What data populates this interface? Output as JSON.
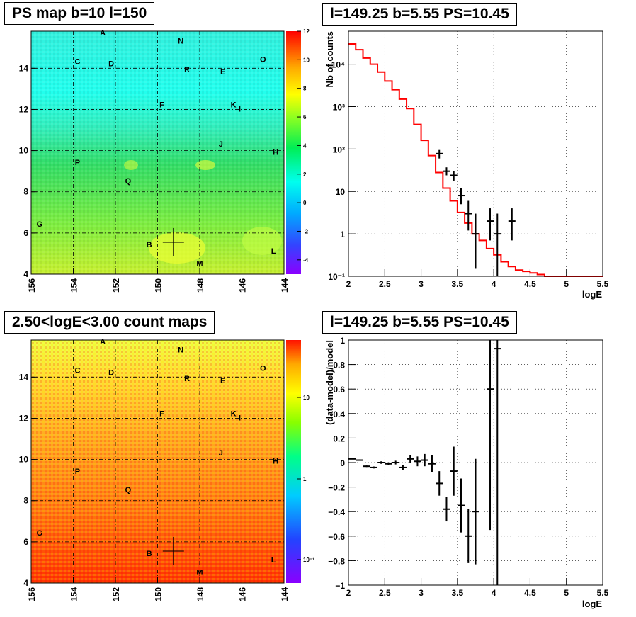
{
  "panels": {
    "ps_map_title": "PS map b=10 l=150",
    "spectrum_title": "l=149.25 b=5.55 PS=10.45",
    "count_map_title": "2.50<logE<3.00 count maps",
    "residual_title": "l=149.25 b=5.55 PS=10.45"
  },
  "map_axes": {
    "x_ticks": [
      "156",
      "154",
      "152",
      "150",
      "148",
      "146",
      "144"
    ],
    "y_ticks": [
      "4",
      "6",
      "8",
      "10",
      "12",
      "14"
    ]
  },
  "ps_colorbar_ticks": [
    "12",
    "10",
    "8",
    "6",
    "4",
    "2",
    "0",
    "-2",
    "-4"
  ],
  "count_colorbar_ticks": [
    "10",
    "1",
    "10⁻¹"
  ],
  "markers": [
    {
      "id": "A",
      "l": 152.6,
      "b": 15.6
    },
    {
      "id": "N",
      "l": 148.9,
      "b": 15.2
    },
    {
      "id": "C",
      "l": 153.8,
      "b": 14.2
    },
    {
      "id": "D",
      "l": 152.2,
      "b": 14.1
    },
    {
      "id": "R",
      "l": 148.6,
      "b": 13.8
    },
    {
      "id": "E",
      "l": 146.9,
      "b": 13.7
    },
    {
      "id": "O",
      "l": 145.0,
      "b": 14.3
    },
    {
      "id": "F",
      "l": 149.8,
      "b": 12.1
    },
    {
      "id": "K",
      "l": 146.4,
      "b": 12.1
    },
    {
      "id": "I",
      "l": 146.1,
      "b": 11.9
    },
    {
      "id": "J",
      "l": 147.0,
      "b": 10.2
    },
    {
      "id": "H",
      "l": 144.4,
      "b": 9.8
    },
    {
      "id": "P",
      "l": 153.8,
      "b": 9.3
    },
    {
      "id": "Q",
      "l": 151.4,
      "b": 8.4
    },
    {
      "id": "G",
      "l": 155.6,
      "b": 6.3
    },
    {
      "id": "B",
      "l": 150.4,
      "b": 5.3
    },
    {
      "id": "L",
      "l": 144.5,
      "b": 5.0
    },
    {
      "id": "M",
      "l": 148.0,
      "b": 4.4
    }
  ],
  "source_position": {
    "l": 149.25,
    "b": 5.55
  },
  "chart_data": [
    {
      "type": "heatmap",
      "title": "PS map b=10 l=150",
      "xlim": [
        156,
        144
      ],
      "ylim": [
        4,
        15.8
      ],
      "zlim": [
        -5,
        12
      ],
      "colorbar_ticks": [
        12,
        10,
        8,
        6,
        4,
        2,
        0,
        -2,
        -4
      ],
      "description_values": "cyan (~0-2) at high b, green-yellow (~4-7) at low b"
    },
    {
      "type": "line",
      "title": "l=149.25 b=5.55 PS=10.45",
      "xlabel": "logE",
      "ylabel": "Nb of counts",
      "xlim": [
        2,
        5.5
      ],
      "ylim": [
        0.1,
        60000
      ],
      "yscale": "log",
      "grid": true,
      "x_ticks": [
        "2",
        "2.5",
        "3",
        "3.5",
        "4",
        "4.5",
        "5",
        "5.5"
      ],
      "y_ticks": [
        "10⁻¹",
        "1",
        "10",
        "10²",
        "10³",
        "10⁴"
      ],
      "model_series": {
        "name": "model",
        "color": "#ff0000",
        "bin_edges": [
          2.0,
          2.1,
          2.2,
          2.3,
          2.4,
          2.5,
          2.6,
          2.7,
          2.8,
          2.9,
          3.0,
          3.1,
          3.2,
          3.3,
          3.4,
          3.5,
          3.6,
          3.7,
          3.8,
          3.9,
          4.0,
          4.1,
          4.2,
          4.3,
          4.4,
          4.5,
          4.6,
          4.7,
          4.8,
          4.9,
          5.0,
          5.1,
          5.2,
          5.3,
          5.4,
          5.5
        ],
        "values": [
          30000,
          22000,
          14000,
          10000,
          6500,
          4000,
          2500,
          1500,
          900,
          380,
          160,
          70,
          28,
          12,
          6,
          3.2,
          1.8,
          1.0,
          0.7,
          0.45,
          0.32,
          0.22,
          0.17,
          0.14,
          0.13,
          0.12,
          0.11,
          0.1,
          0.1,
          0.1,
          0.1,
          0.1,
          0.1,
          0.1,
          0.1
        ]
      },
      "data_series": {
        "name": "data",
        "color": "#000000",
        "points": [
          {
            "x": 3.25,
            "y": 78,
            "lo": 60,
            "hi": 95
          },
          {
            "x": 3.35,
            "y": 30,
            "lo": 24,
            "hi": 37
          },
          {
            "x": 3.45,
            "y": 24,
            "lo": 18,
            "hi": 30
          },
          {
            "x": 3.55,
            "y": 8,
            "lo": 5,
            "hi": 12
          },
          {
            "x": 3.65,
            "y": 3,
            "lo": 1.2,
            "hi": 6
          },
          {
            "x": 3.75,
            "y": 1,
            "lo": 0.15,
            "hi": 3
          },
          {
            "x": 3.95,
            "y": 2,
            "lo": 0.7,
            "hi": 4
          },
          {
            "x": 4.05,
            "y": 1,
            "lo": 0.1,
            "hi": 3
          },
          {
            "x": 4.25,
            "y": 2,
            "lo": 0.7,
            "hi": 4
          }
        ]
      }
    },
    {
      "type": "heatmap",
      "title": "2.50<logE<3.00 count maps",
      "xlim": [
        156,
        144
      ],
      "ylim": [
        4,
        15.8
      ],
      "zscale": "log",
      "colorbar_ticks": [
        "10",
        "1",
        "10⁻¹"
      ],
      "description_values": "yellow at high b, red-orange at low b"
    },
    {
      "type": "scatter",
      "title": "l=149.25 b=5.55 PS=10.45",
      "xlabel": "logE",
      "ylabel": "(data-model)/model",
      "xlim": [
        2,
        5.5
      ],
      "ylim": [
        -1,
        1
      ],
      "grid": true,
      "x_ticks": [
        "2",
        "2.5",
        "3",
        "3.5",
        "4",
        "4.5",
        "5",
        "5.5"
      ],
      "y_ticks": [
        "−1",
        "−0.8",
        "−0.6",
        "−0.4",
        "−0.2",
        "0",
        "0.2",
        "0.4",
        "0.6",
        "0.8",
        "1"
      ],
      "points": [
        {
          "x": 2.05,
          "y": 0.03,
          "err": 0.004
        },
        {
          "x": 2.15,
          "y": 0.02,
          "err": 0.005
        },
        {
          "x": 2.25,
          "y": -0.03,
          "err": 0.006
        },
        {
          "x": 2.35,
          "y": -0.04,
          "err": 0.008
        },
        {
          "x": 2.45,
          "y": 0.0,
          "err": 0.01
        },
        {
          "x": 2.55,
          "y": -0.01,
          "err": 0.012
        },
        {
          "x": 2.65,
          "y": 0.0,
          "err": 0.015
        },
        {
          "x": 2.75,
          "y": -0.04,
          "err": 0.02
        },
        {
          "x": 2.85,
          "y": 0.03,
          "err": 0.03
        },
        {
          "x": 2.95,
          "y": 0.01,
          "err": 0.04
        },
        {
          "x": 3.05,
          "y": 0.02,
          "err": 0.05
        },
        {
          "x": 3.15,
          "y": -0.01,
          "err": 0.07
        },
        {
          "x": 3.25,
          "y": -0.17,
          "err": 0.1
        },
        {
          "x": 3.35,
          "y": -0.38,
          "err": 0.1
        },
        {
          "x": 3.45,
          "y": -0.07,
          "err": 0.2
        },
        {
          "x": 3.55,
          "y": -0.35,
          "err": 0.22
        },
        {
          "x": 3.65,
          "y": -0.6,
          "err": 0.22
        },
        {
          "x": 3.75,
          "y": -0.4,
          "err": 0.43
        },
        {
          "x": 3.95,
          "y": 0.6,
          "err": 1.15
        },
        {
          "x": 4.05,
          "y": 0.93,
          "err": 2.0
        }
      ]
    }
  ]
}
